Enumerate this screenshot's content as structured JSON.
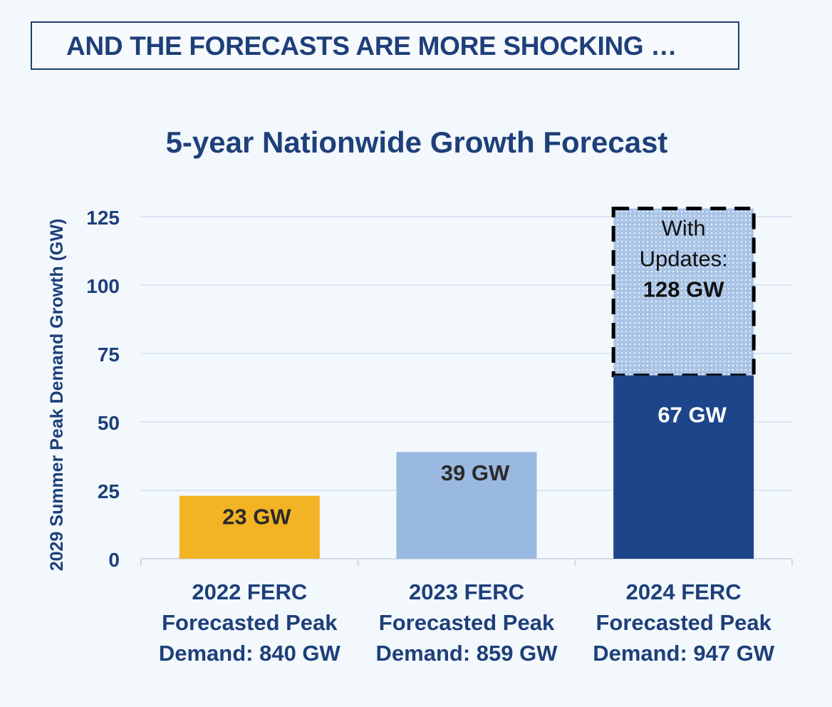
{
  "banner": {
    "text": "AND THE FORECASTS ARE MORE SHOCKING …"
  },
  "colors": {
    "title": "#1e3f7a",
    "bar2022": "#f2b324",
    "bar2023": "#9ab9e1",
    "bar2024": "#1e4589",
    "updates_fill": "#a9c4e6",
    "grid": "#dbe5f3"
  },
  "chart_data": {
    "type": "bar",
    "title": "5-year Nationwide Growth Forecast",
    "xlabel": "",
    "ylabel": "2029 Summer Peak Demand Growth (GW)",
    "ylim": [
      0,
      125
    ],
    "yticks": [
      0,
      25,
      50,
      75,
      100,
      125
    ],
    "categories": [
      [
        "2022 FERC",
        "Forecasted Peak",
        "Demand: 840 GW"
      ],
      [
        "2023 FERC",
        "Forecasted Peak",
        "Demand: 859 GW"
      ],
      [
        "2024 FERC",
        "Forecasted Peak",
        "Demand: 947 GW"
      ]
    ],
    "values": [
      23,
      39,
      67
    ],
    "labels": [
      "23 GW",
      "39 GW",
      "67 GW"
    ],
    "updated_total": {
      "category_index": 2,
      "value": 128,
      "label_lines": [
        "With",
        "Updates:"
      ],
      "value_label": "128 GW"
    }
  }
}
